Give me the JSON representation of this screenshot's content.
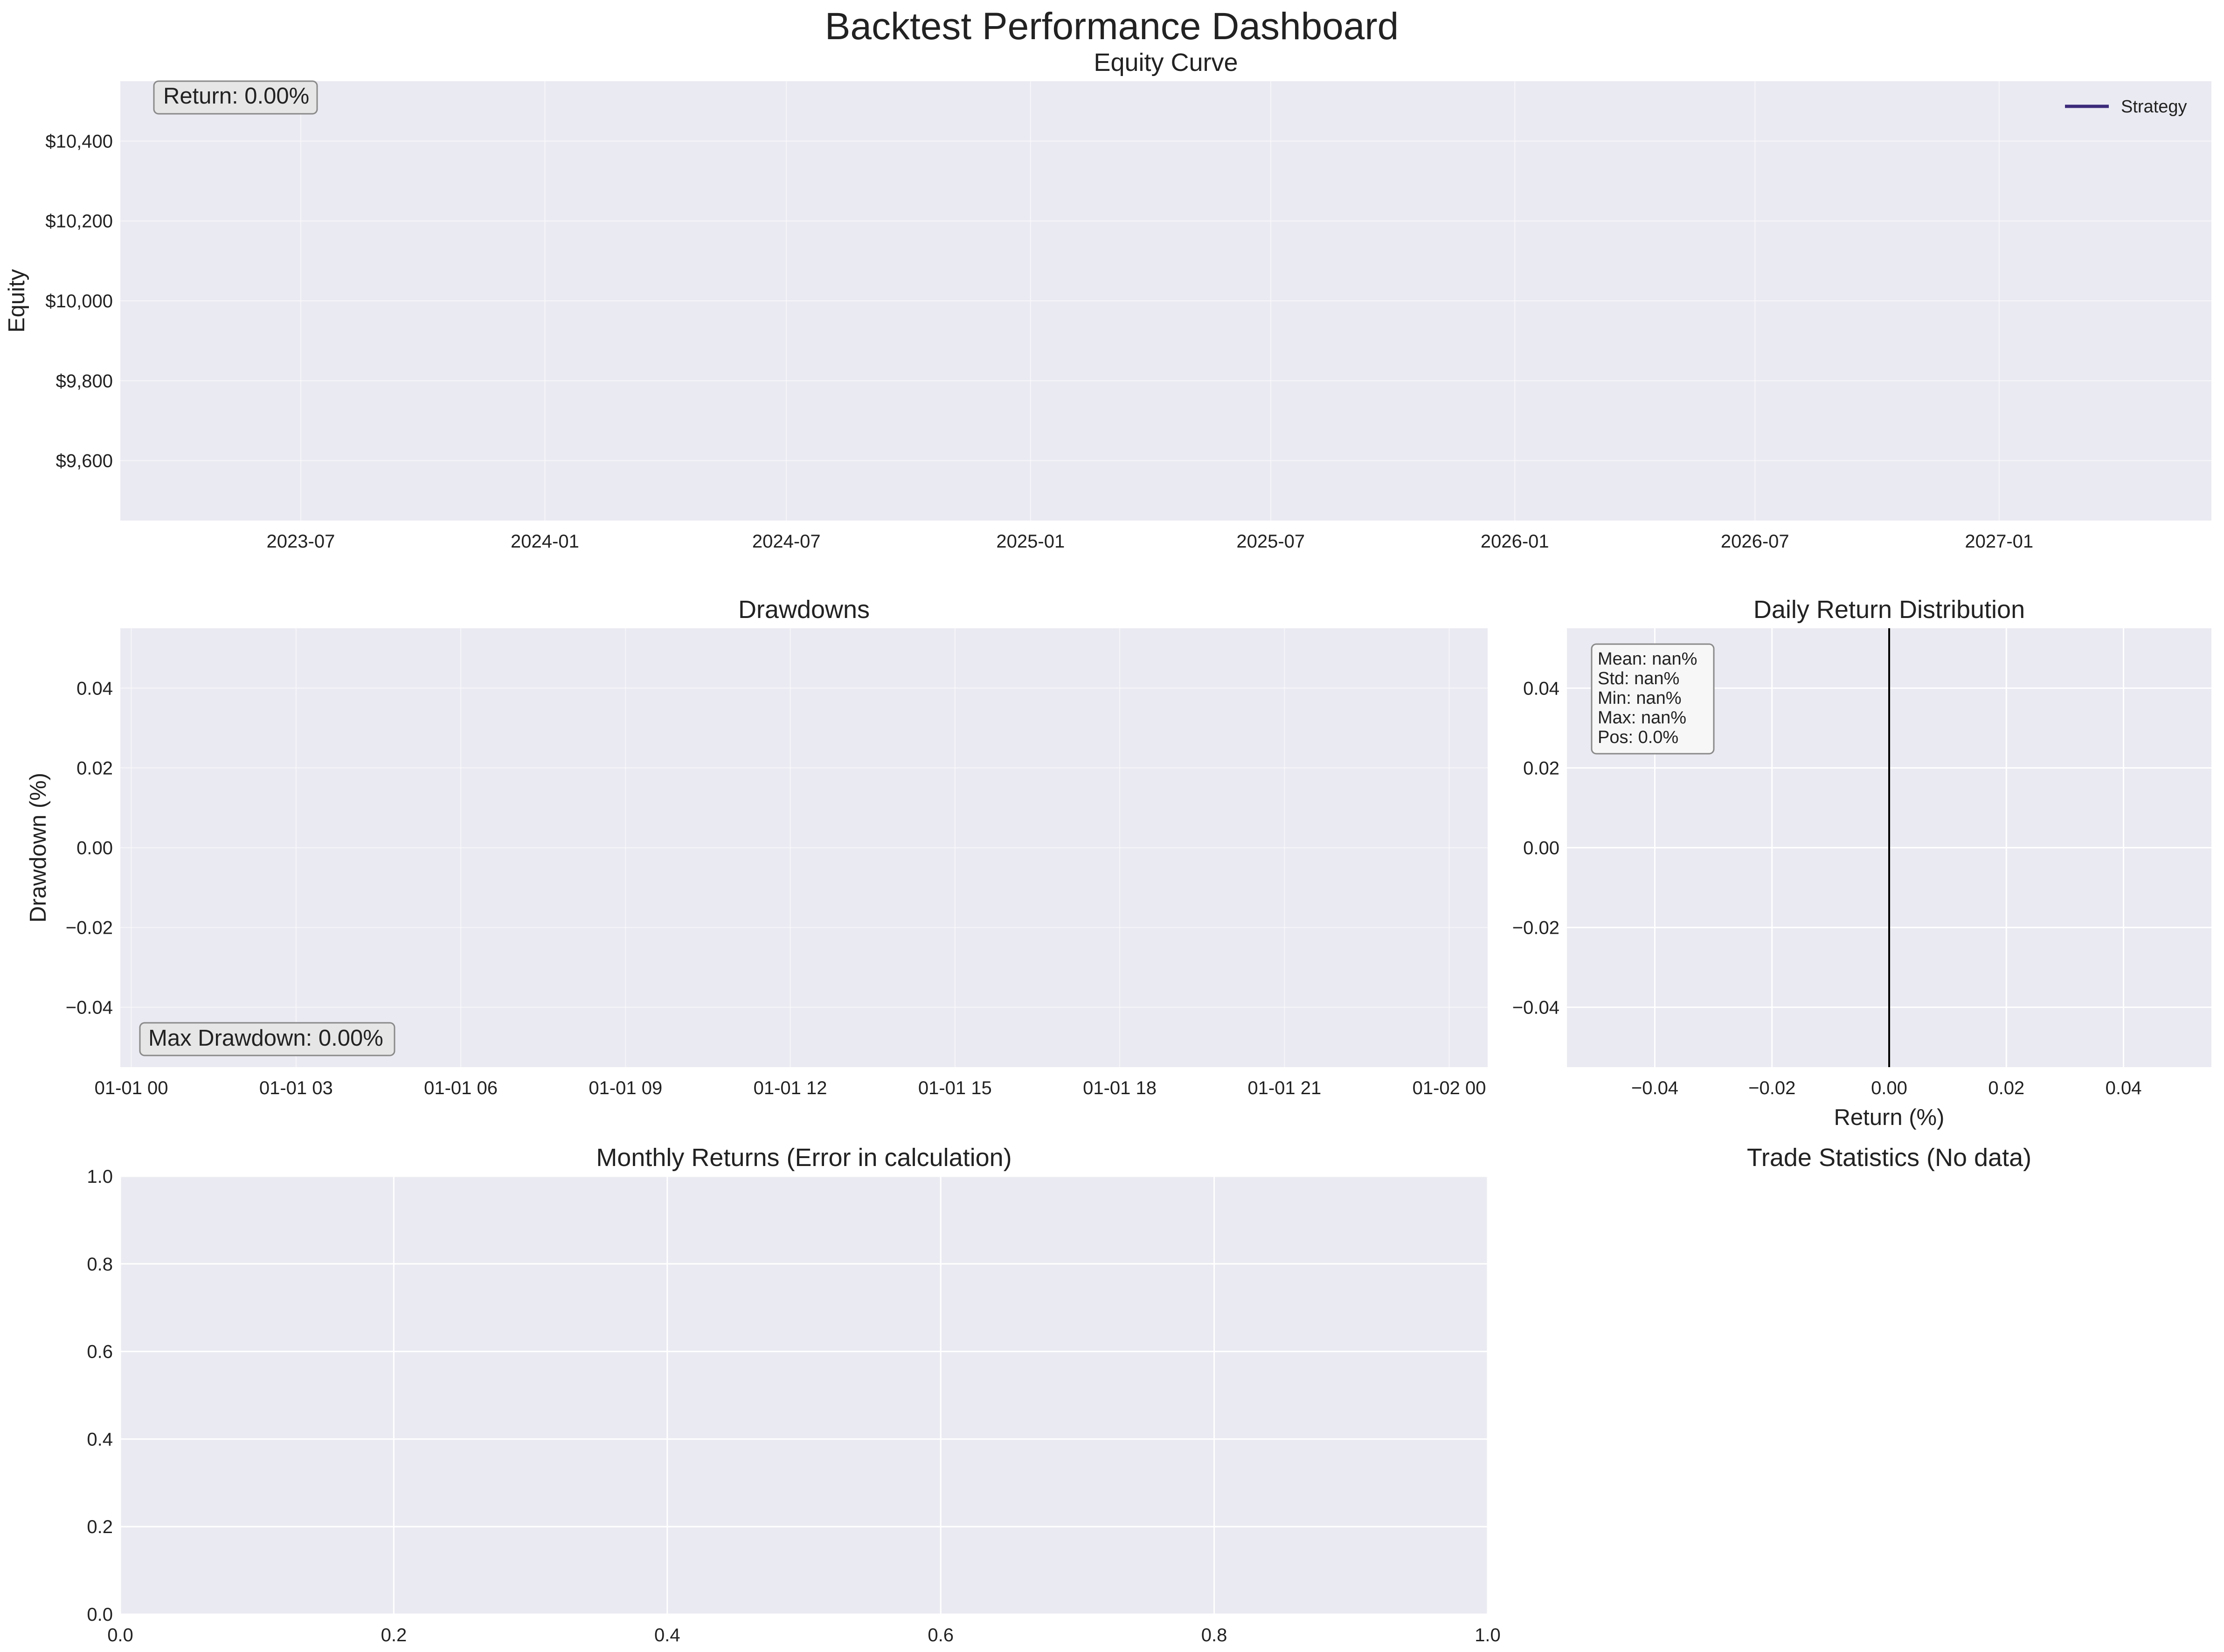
{
  "dashboard": {
    "title": "Backtest Performance Dashboard"
  },
  "colors": {
    "axes_bg": "#eaeaf2",
    "grid": "#ffffff",
    "strategy_line": "#3b2a7a",
    "zero_line": "#000000"
  },
  "chart_data": [
    {
      "id": "equity",
      "type": "line",
      "title": "Equity Curve",
      "xlabel": "",
      "ylabel": "Equity",
      "x_ticks": [
        "2023-07",
        "2024-01",
        "2024-07",
        "2025-01",
        "2025-07",
        "2026-01",
        "2026-07",
        "2027-01"
      ],
      "xlim": [
        "2023-02-15",
        "2027-06-10"
      ],
      "y_ticks": [
        9600,
        9800,
        10000,
        10200,
        10400
      ],
      "y_tick_labels": [
        "$9,600",
        "$9,800",
        "$10,000",
        "$10,200",
        "$10,400"
      ],
      "ylim": [
        9450,
        10550
      ],
      "series": [
        {
          "name": "Strategy",
          "x": [],
          "y": []
        }
      ],
      "legend": "top-right",
      "grid": true,
      "annotation": "Return: 0.00%"
    },
    {
      "id": "drawdowns",
      "type": "area",
      "title": "Drawdowns",
      "xlabel": "",
      "ylabel": "Drawdown (%)",
      "x_ticks": [
        "01-01 00",
        "01-01 03",
        "01-01 06",
        "01-01 09",
        "01-01 12",
        "01-01 15",
        "01-01 18",
        "01-01 21",
        "01-02 00"
      ],
      "xlim": [
        -0.2,
        24.7
      ],
      "y_ticks": [
        -0.04,
        -0.02,
        0.0,
        0.02,
        0.04
      ],
      "y_tick_labels": [
        "−0.04",
        "−0.02",
        "0.00",
        "0.02",
        "0.04"
      ],
      "ylim": [
        -0.055,
        0.055
      ],
      "series": [],
      "grid": true,
      "annotation": "Max Drawdown: 0.00%"
    },
    {
      "id": "return_dist",
      "type": "bar",
      "title": "Daily Return Distribution",
      "xlabel": "Return (%)",
      "ylabel": "",
      "x_ticks": [
        -0.04,
        -0.02,
        0.0,
        0.02,
        0.04
      ],
      "x_tick_labels": [
        "−0.04",
        "−0.02",
        "0.00",
        "0.02",
        "0.04"
      ],
      "xlim": [
        -0.055,
        0.055
      ],
      "y_ticks": [
        -0.04,
        -0.02,
        0.0,
        0.02,
        0.04
      ],
      "y_tick_labels": [
        "−0.04",
        "−0.02",
        "0.00",
        "0.02",
        "0.04"
      ],
      "ylim": [
        -0.055,
        0.055
      ],
      "vline_x": 0.0,
      "grid": true,
      "stats_lines": [
        "Mean: nan%",
        "Std: nan%",
        "Min: nan%",
        "Max: nan%",
        "Pos: 0.0%"
      ]
    },
    {
      "id": "monthly",
      "type": "heatmap",
      "title": "Monthly Returns (Error in calculation)",
      "xlabel": "",
      "ylabel": "",
      "x_ticks": [
        0.0,
        0.2,
        0.4,
        0.6,
        0.8,
        1.0
      ],
      "x_tick_labels": [
        "0.0",
        "0.2",
        "0.4",
        "0.6",
        "0.8",
        "1.0"
      ],
      "xlim": [
        0,
        1
      ],
      "y_ticks": [
        0.0,
        0.2,
        0.4,
        0.6,
        0.8,
        1.0
      ],
      "y_tick_labels": [
        "0.0",
        "0.2",
        "0.4",
        "0.6",
        "0.8",
        "1.0"
      ],
      "ylim": [
        0,
        1
      ],
      "grid": true
    },
    {
      "id": "trades",
      "type": "table",
      "title": "Trade Statistics (No data)"
    }
  ]
}
